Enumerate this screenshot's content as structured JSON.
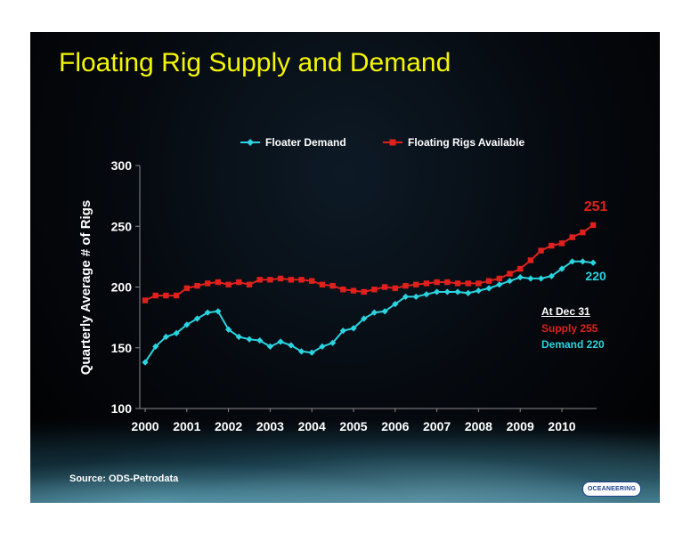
{
  "slide": {
    "title": "Floating Rig Supply and Demand",
    "source": "Source:  ODS-Petrodata",
    "logo_text": "OCEANEERING"
  },
  "annotation": {
    "title": "At  Dec 31",
    "supply": "Supply 255",
    "demand": "Demand 220"
  },
  "colors": {
    "title": "#f5f500",
    "demand": "#2ad4e0",
    "supply": "#e0201c",
    "axis_text": "#ffffff"
  },
  "chart_data": {
    "type": "line",
    "title": "Floating Rig Supply and Demand",
    "ylabel": "Quarterly Average # of Rigs",
    "xlabel": "",
    "ylim": [
      100,
      300
    ],
    "yticks": [
      100,
      150,
      200,
      250,
      300
    ],
    "xticks": [
      "2000",
      "2001",
      "2002",
      "2003",
      "2004",
      "2005",
      "2006",
      "2007",
      "2008",
      "2009",
      "2010"
    ],
    "x_quarters": [
      "2000 Q1",
      "2000 Q2",
      "2000 Q3",
      "2000 Q4",
      "2001 Q1",
      "2001 Q2",
      "2001 Q3",
      "2001 Q4",
      "2002 Q1",
      "2002 Q2",
      "2002 Q3",
      "2002 Q4",
      "2003 Q1",
      "2003 Q2",
      "2003 Q3",
      "2003 Q4",
      "2004 Q1",
      "2004 Q2",
      "2004 Q3",
      "2004 Q4",
      "2005 Q1",
      "2005 Q2",
      "2005 Q3",
      "2005 Q4",
      "2006 Q1",
      "2006 Q2",
      "2006 Q3",
      "2006 Q4",
      "2007 Q1",
      "2007 Q2",
      "2007 Q3",
      "2007 Q4",
      "2008 Q1",
      "2008 Q2",
      "2008 Q3",
      "2008 Q4",
      "2009 Q1",
      "2009 Q2",
      "2009 Q3",
      "2009 Q4",
      "2010 Q1",
      "2010 Q2",
      "2010 Q3",
      "2010 Q4"
    ],
    "legend_position": "top",
    "grid": false,
    "series": [
      {
        "name": "Floater Demand",
        "color": "#2ad4e0",
        "marker": "diamond",
        "end_label": "220",
        "values": [
          138,
          151,
          159,
          162,
          169,
          174,
          179,
          180,
          165,
          159,
          157,
          156,
          151,
          155,
          152,
          147,
          146,
          151,
          154,
          164,
          166,
          174,
          179,
          180,
          186,
          192,
          192,
          194,
          196,
          196,
          196,
          195,
          197,
          199,
          202,
          205,
          208,
          207,
          207,
          209,
          215,
          221,
          221,
          220
        ]
      },
      {
        "name": "Floating Rigs Available",
        "color": "#e0201c",
        "marker": "square",
        "end_label": "251",
        "values": [
          189,
          193,
          193,
          193,
          199,
          201,
          203,
          204,
          202,
          204,
          202,
          206,
          206,
          207,
          206,
          206,
          205,
          202,
          201,
          198,
          197,
          196,
          198,
          200,
          199,
          201,
          202,
          203,
          204,
          204,
          203,
          203,
          203,
          205,
          207,
          211,
          215,
          222,
          230,
          234,
          236,
          241,
          245,
          251
        ]
      }
    ]
  }
}
